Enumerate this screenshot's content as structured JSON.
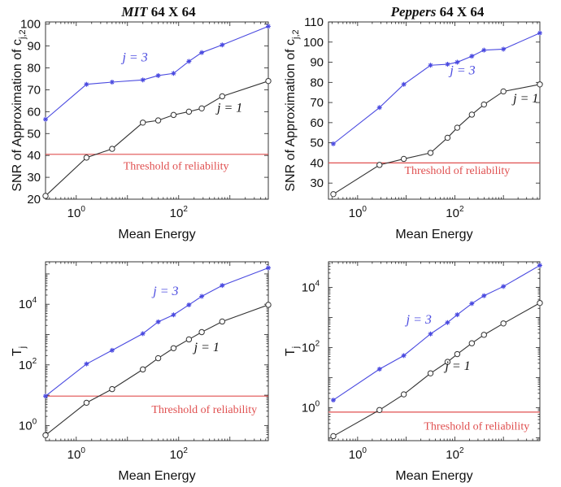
{
  "chart_data": [
    {
      "type": "line",
      "title_italic": "MIT",
      "title_rest": " 64 X 64",
      "xlabel": "Mean Energy",
      "ylabel": "SNR of Approximation of c",
      "ylabel_sub": "j,2",
      "xscale": "log",
      "xlim_log10": [
        -0.6,
        3.75
      ],
      "xticks_log10": [
        0,
        2
      ],
      "yscale": "linear",
      "ylim": [
        20,
        101
      ],
      "yticks": [
        20,
        30,
        40,
        50,
        60,
        70,
        80,
        90,
        100
      ],
      "series": [
        {
          "name": "j = 3",
          "color": "#4a4ae0",
          "marker": "star",
          "x_log10": [
            -0.6,
            0.2,
            0.7,
            1.3,
            1.6,
            1.9,
            2.2,
            2.45,
            2.85,
            3.75
          ],
          "y": [
            56.5,
            72.5,
            73.5,
            74.5,
            76.5,
            77.5,
            83,
            87,
            90.5,
            99
          ]
        },
        {
          "name": "j = 1",
          "color": "#333333",
          "marker": "circle",
          "x_log10": [
            -0.6,
            0.2,
            0.7,
            1.3,
            1.6,
            1.9,
            2.2,
            2.45,
            2.85,
            3.75
          ],
          "y": [
            21.5,
            39,
            43,
            55,
            56,
            58.5,
            60,
            61.5,
            67,
            74
          ]
        }
      ],
      "threshold": {
        "y": 40.5,
        "color": "#e05050",
        "label": "Threshold of reliability"
      }
    },
    {
      "type": "line",
      "title_italic": "Peppers",
      "title_rest": " 64 X 64",
      "xlabel": "Mean Energy",
      "ylabel": "SNR of Approximation of c",
      "ylabel_sub": "j,2",
      "xscale": "log",
      "xlim_log10": [
        -0.6,
        3.75
      ],
      "xticks_log10": [
        0,
        2
      ],
      "yscale": "linear",
      "ylim": [
        22,
        110
      ],
      "yticks": [
        30,
        40,
        50,
        60,
        70,
        80,
        90,
        100,
        110
      ],
      "series": [
        {
          "name": "j = 3",
          "color": "#4a4ae0",
          "marker": "star",
          "x_log10": [
            -0.5,
            0.45,
            0.95,
            1.5,
            1.85,
            2.05,
            2.35,
            2.6,
            3.0,
            3.75
          ],
          "y": [
            49.5,
            67.5,
            79,
            88.5,
            89,
            90,
            93,
            96,
            96.5,
            104.5
          ]
        },
        {
          "name": "j = 1",
          "color": "#333333",
          "marker": "circle",
          "x_log10": [
            -0.5,
            0.45,
            0.95,
            1.5,
            1.85,
            2.05,
            2.35,
            2.6,
            3.0,
            3.75
          ],
          "y": [
            24.5,
            39,
            42,
            45,
            52.5,
            57.5,
            64,
            69,
            75.5,
            79
          ]
        }
      ],
      "threshold": {
        "y": 40,
        "color": "#e05050",
        "label": "Threshold of reliability"
      }
    },
    {
      "type": "line",
      "xlabel": "Mean Energy",
      "ylabel": "T",
      "ylabel_sub": "j",
      "xscale": "log",
      "xlim_log10": [
        -0.6,
        3.75
      ],
      "xticks_log10": [
        0,
        2
      ],
      "yscale": "log",
      "ylim_log10": [
        -0.5,
        5.4
      ],
      "yticks_log10": [
        0,
        2,
        4
      ],
      "series": [
        {
          "name": "j = 3",
          "color": "#4a4ae0",
          "marker": "star",
          "x_log10": [
            -0.6,
            0.2,
            0.7,
            1.3,
            1.6,
            1.9,
            2.2,
            2.45,
            2.85,
            3.75
          ],
          "y_log10": [
            0.97,
            2.03,
            2.48,
            3.03,
            3.42,
            3.65,
            3.98,
            4.26,
            4.62,
            5.2
          ]
        },
        {
          "name": "j = 1",
          "color": "#333333",
          "marker": "circle",
          "x_log10": [
            -0.6,
            0.2,
            0.7,
            1.3,
            1.6,
            1.9,
            2.2,
            2.45,
            2.85,
            3.75
          ],
          "y_log10": [
            -0.32,
            0.75,
            1.2,
            1.85,
            2.22,
            2.55,
            2.84,
            3.08,
            3.43,
            3.98
          ]
        }
      ],
      "threshold": {
        "y_log10": 0.97,
        "color": "#e05050",
        "label": "Threshold of reliability"
      }
    },
    {
      "type": "line",
      "xlabel": "Mean Energy",
      "ylabel": "T",
      "ylabel_sub": "j",
      "xscale": "log",
      "xlim_log10": [
        -0.6,
        3.75
      ],
      "xticks_log10": [
        0,
        2
      ],
      "yscale": "log",
      "ylim_log10": [
        -1.1,
        4.85
      ],
      "yticks_log10": [
        0,
        2,
        4
      ],
      "series": [
        {
          "name": "j = 3",
          "color": "#4a4ae0",
          "marker": "star",
          "x_log10": [
            -0.5,
            0.45,
            0.95,
            1.5,
            1.85,
            2.05,
            2.35,
            2.6,
            3.0,
            3.75
          ],
          "y_log10": [
            0.25,
            1.28,
            1.73,
            2.45,
            2.83,
            3.09,
            3.46,
            3.72,
            4.03,
            4.73
          ]
        },
        {
          "name": "j = 1",
          "color": "#333333",
          "marker": "circle",
          "x_log10": [
            -0.5,
            0.45,
            0.95,
            1.5,
            1.85,
            2.05,
            2.35,
            2.6,
            3.0,
            3.75
          ],
          "y_log10": [
            -0.95,
            -0.08,
            0.44,
            1.14,
            1.52,
            1.78,
            2.14,
            2.42,
            2.8,
            3.48
          ]
        }
      ],
      "threshold": {
        "y_log10": -0.15,
        "color": "#e05050",
        "label": "Threshold of reliability"
      }
    }
  ]
}
